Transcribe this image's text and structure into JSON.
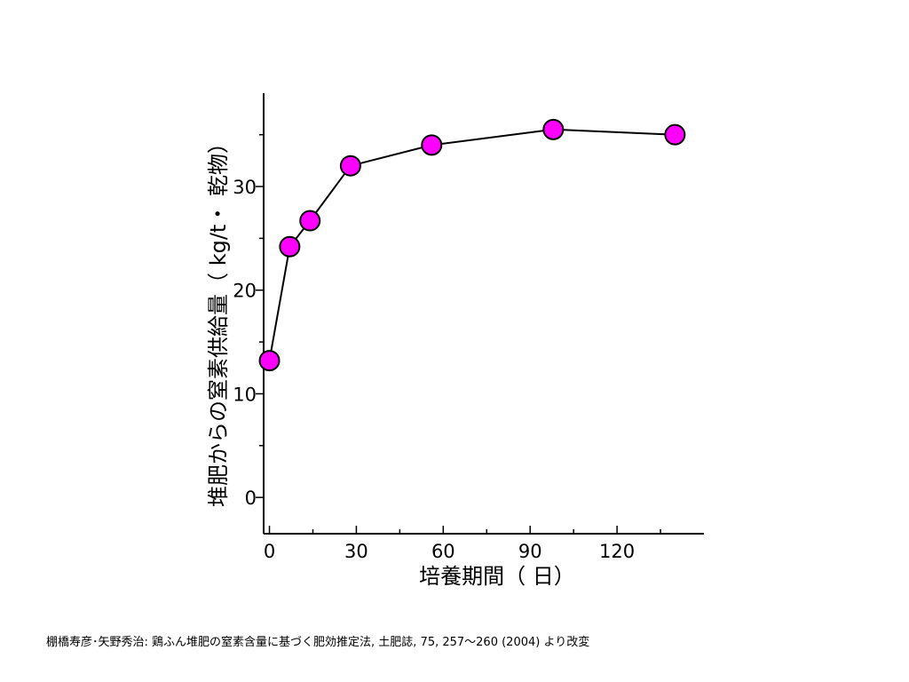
{
  "chart_data": {
    "type": "line",
    "x": [
      0,
      7,
      14,
      28,
      56,
      98,
      140
    ],
    "y": [
      13.2,
      24.2,
      26.7,
      32.0,
      34.0,
      35.5,
      35.0
    ],
    "xlabel": "培養期間（ 日）",
    "ylabel": "堆肥からの窒素供給量（ kg/t・ 乾物）",
    "xlim": [
      -2,
      150
    ],
    "ylim": [
      -3.5,
      39
    ],
    "xticks": [
      0,
      30,
      60,
      90,
      120
    ],
    "yticks": [
      0,
      10,
      20,
      30
    ],
    "x_minor_ticks": [
      15,
      45,
      75,
      105,
      135
    ],
    "y_minor_ticks": [
      5,
      15,
      25,
      35
    ],
    "marker_color": "#ff00ff",
    "line_color": "#000000",
    "grid": false
  },
  "caption": "棚橋寿彦･矢野秀治: 鶏ふん堆肥の窒素含量に基づく肥効推定法, 土肥誌, 75, 257～260 (2004) より改変"
}
